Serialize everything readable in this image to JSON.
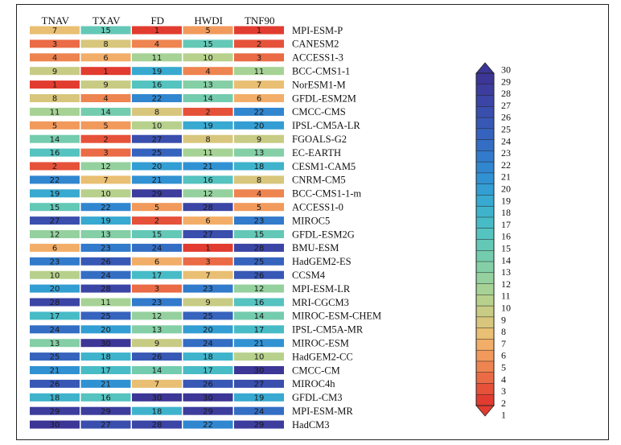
{
  "chart_data": {
    "type": "heatmap",
    "columns": [
      "TNAV",
      "TXAV",
      "FD",
      "HWDI",
      "TNF90"
    ],
    "rows": [
      {
        "model": "MPI-ESM-P",
        "values": [
          7,
          15,
          1,
          5,
          1
        ]
      },
      {
        "model": "CANESM2",
        "values": [
          3,
          8,
          4,
          15,
          2
        ]
      },
      {
        "model": "ACCESS1-3",
        "values": [
          4,
          6,
          11,
          10,
          3
        ]
      },
      {
        "model": "BCC-CMS1-1",
        "values": [
          9,
          1,
          19,
          4,
          11
        ]
      },
      {
        "model": "NorESM1-M",
        "values": [
          1,
          9,
          16,
          13,
          7
        ]
      },
      {
        "model": "GFDL-ESM2M",
        "values": [
          8,
          4,
          22,
          14,
          6
        ]
      },
      {
        "model": "CMCC-CMS",
        "values": [
          11,
          14,
          8,
          2,
          22
        ]
      },
      {
        "model": "IPSL-CM5A-LR",
        "values": [
          5,
          5,
          10,
          19,
          20
        ]
      },
      {
        "model": "FGOALS-G2",
        "values": [
          14,
          2,
          27,
          8,
          9
        ]
      },
      {
        "model": "EC-EARTH",
        "values": [
          16,
          3,
          25,
          11,
          13
        ]
      },
      {
        "model": "CESM1-CAM5",
        "values": [
          2,
          12,
          20,
          21,
          18
        ]
      },
      {
        "model": "CNRM-CM5",
        "values": [
          22,
          7,
          21,
          16,
          8
        ]
      },
      {
        "model": "BCC-CMS1-1-m",
        "values": [
          19,
          10,
          29,
          12,
          4
        ]
      },
      {
        "model": "ACCESS1-0",
        "values": [
          15,
          22,
          5,
          28,
          5
        ]
      },
      {
        "model": "MIROC5",
        "values": [
          27,
          19,
          2,
          6,
          23
        ]
      },
      {
        "model": "GFDL-ESM2G",
        "values": [
          12,
          13,
          15,
          27,
          15
        ]
      },
      {
        "model": "BMU-ESM",
        "values": [
          6,
          23,
          24,
          1,
          28
        ]
      },
      {
        "model": "HadGEM2-ES",
        "values": [
          23,
          26,
          6,
          3,
          25
        ]
      },
      {
        "model": "CCSM4",
        "values": [
          10,
          24,
          17,
          7,
          26
        ]
      },
      {
        "model": "MPI-ESM-LR",
        "values": [
          20,
          28,
          3,
          23,
          12
        ]
      },
      {
        "model": "MRI-CGCM3",
        "values": [
          28,
          11,
          23,
          9,
          16
        ]
      },
      {
        "model": "MIROC-ESM-CHEM",
        "values": [
          17,
          25,
          12,
          25,
          14
        ]
      },
      {
        "model": "IPSL-CM5A-MR",
        "values": [
          24,
          20,
          13,
          20,
          17
        ]
      },
      {
        "model": "MIROC-ESM",
        "values": [
          13,
          30,
          9,
          24,
          21
        ]
      },
      {
        "model": "HadGEM2-CC",
        "values": [
          25,
          18,
          26,
          18,
          10
        ]
      },
      {
        "model": "CMCC-CM",
        "values": [
          21,
          17,
          14,
          17,
          30
        ]
      },
      {
        "model": "MIROC4h",
        "values": [
          26,
          21,
          7,
          26,
          27
        ]
      },
      {
        "model": "GFDL-CM3",
        "values": [
          18,
          16,
          30,
          30,
          19
        ]
      },
      {
        "model": "MPI-ESM-MR",
        "values": [
          29,
          29,
          18,
          29,
          24
        ]
      },
      {
        "model": "HadCM3",
        "values": [
          30,
          27,
          28,
          22,
          29
        ]
      }
    ],
    "colorbar": {
      "min": 1,
      "max": 30,
      "ticks": [
        30,
        29,
        28,
        27,
        26,
        25,
        24,
        23,
        22,
        21,
        20,
        19,
        18,
        17,
        16,
        15,
        14,
        13,
        12,
        11,
        10,
        9,
        8,
        7,
        6,
        5,
        4,
        3,
        2,
        1
      ],
      "colors": [
        "#e23c30",
        "#e6513a",
        "#ea6b45",
        "#ee8450",
        "#f19a5c",
        "#f2ae68",
        "#e9bf73",
        "#d8c67c",
        "#c8cb83",
        "#b7d18c",
        "#a6d395",
        "#95d19e",
        "#84cfa6",
        "#74ccae",
        "#64c8b7",
        "#55c3bf",
        "#48bcc6",
        "#3fb3cc",
        "#38a9d0",
        "#339ed3",
        "#3192d3",
        "#3186d0",
        "#327acb",
        "#346ec4",
        "#3663bd",
        "#3858b5",
        "#3a4ead",
        "#3b45a5",
        "#3c3d9d",
        "#3c3696"
      ],
      "legend_position": "right"
    }
  }
}
